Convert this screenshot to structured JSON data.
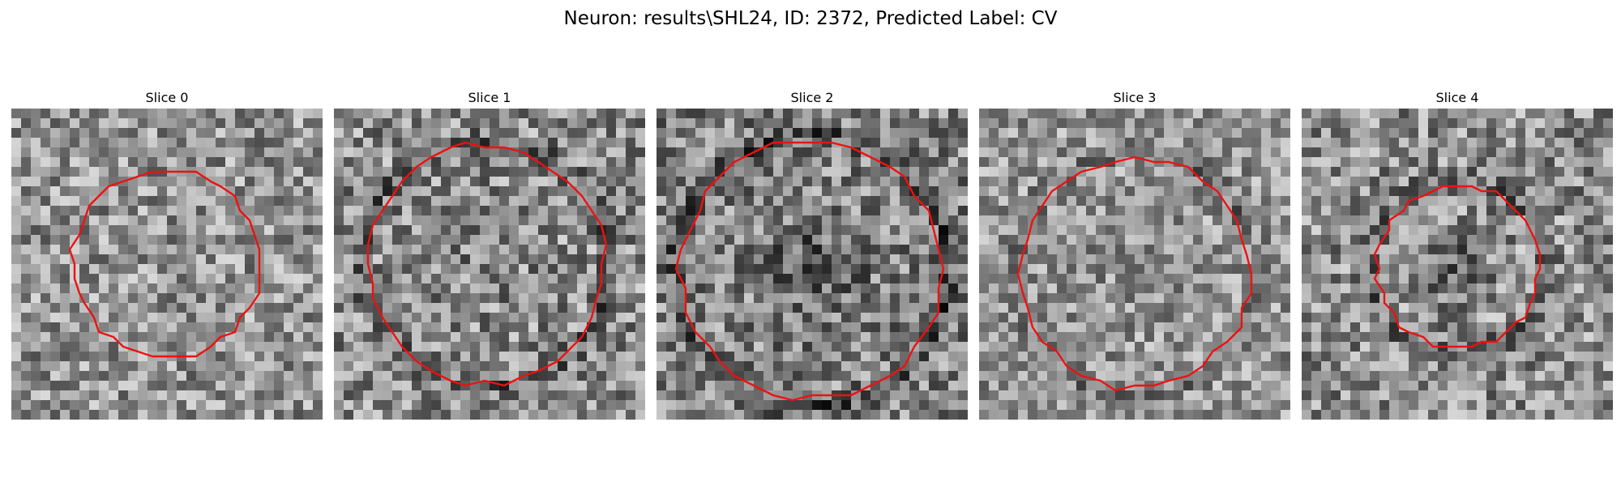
{
  "figure": {
    "title": "Neuron: results\\SHL24, ID: 2372, Predicted Label: CV",
    "contour_color": "#ee1111"
  },
  "slices": [
    {
      "label": "Slice 0",
      "seed": 11,
      "base": 148,
      "spread": 70,
      "dark_ring": 0,
      "inner_dark": 0,
      "contour_r": 0.3,
      "contour_cx": 0.5,
      "contour_cy": 0.5
    },
    {
      "label": "Slice 1",
      "seed": 23,
      "base": 140,
      "spread": 75,
      "dark_ring": 45,
      "inner_dark": 10,
      "contour_r": 0.38,
      "contour_cx": 0.49,
      "contour_cy": 0.5
    },
    {
      "label": "Slice 2",
      "seed": 37,
      "base": 130,
      "spread": 75,
      "dark_ring": 55,
      "inner_dark": 45,
      "contour_r": 0.42,
      "contour_cx": 0.5,
      "contour_cy": 0.52
    },
    {
      "label": "Slice 3",
      "seed": 53,
      "base": 150,
      "spread": 65,
      "dark_ring": 35,
      "inner_dark": 10,
      "contour_r": 0.37,
      "contour_cx": 0.5,
      "contour_cy": 0.53
    },
    {
      "label": "Slice 4",
      "seed": 71,
      "base": 142,
      "spread": 75,
      "dark_ring": 40,
      "inner_dark": 55,
      "contour_r": 0.26,
      "contour_cx": 0.5,
      "contour_cy": 0.51
    }
  ]
}
